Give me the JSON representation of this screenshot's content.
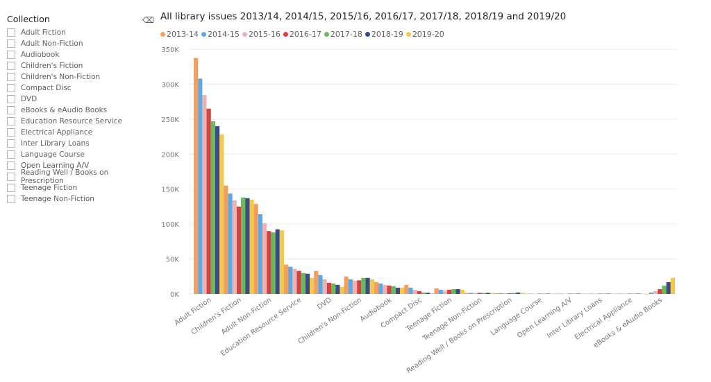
{
  "slicer": {
    "title": "Collection",
    "clear_icon": "eraser-icon",
    "items": [
      "Adult Fiction",
      "Adult Non-Fiction",
      "Audiobook",
      "Children's Fiction",
      "Children's Non-Fiction",
      "Compact Disc",
      "DVD",
      "eBooks & eAudio Books",
      "Education Resource Service",
      "Electrical Appliance",
      "Inter Library Loans",
      "Language Course",
      "Open Learning A/V",
      "Reading Well / Books on Prescription",
      "Teenage Fiction",
      "Teenage Non-Fiction"
    ]
  },
  "chart_data": {
    "type": "bar",
    "title": "All library issues 2013/14, 2014/15, 2015/16, 2016/17, 2017/18, 2018/19 and 2019/20",
    "xlabel": "",
    "ylabel": "",
    "ylim": [
      0,
      350000
    ],
    "yticks": [
      "0K",
      "50K",
      "100K",
      "150K",
      "200K",
      "250K",
      "300K",
      "350K"
    ],
    "grid": true,
    "legend": "top-left",
    "categories": [
      "Adult Fiction",
      "Children's Fiction",
      "Adult Non-Fiction",
      "Education Resource Service",
      "DVD",
      "Children's Non-Fiction",
      "Audiobook",
      "Compact Disc",
      "Teenage Fiction",
      "Teenage Non-Fiction",
      "Reading Well / Books on Prescription",
      "Language Course",
      "Open Learning A/V",
      "Inter Library Loans",
      "Electrical Appliance",
      "eBooks & eAudio Books"
    ],
    "series": [
      {
        "name": "2013-14",
        "color": "#F2A060",
        "values": [
          337600,
          155000,
          128700,
          42000,
          33000,
          25000,
          17000,
          13000,
          8000,
          1500,
          1000,
          500,
          500,
          500,
          500,
          0
        ]
      },
      {
        "name": "2014-15",
        "color": "#5DA9E5",
        "values": [
          308000,
          143600,
          114000,
          39000,
          27000,
          21000,
          15000,
          9000,
          6000,
          1500,
          1000,
          500,
          500,
          500,
          500,
          2000
        ]
      },
      {
        "name": "2015-16",
        "color": "#EDB3B3",
        "values": [
          284500,
          133700,
          101000,
          36000,
          21000,
          19000,
          13000,
          6000,
          5000,
          1500,
          1000,
          500,
          500,
          500,
          500,
          4000
        ]
      },
      {
        "name": "2016-17",
        "color": "#D24444",
        "values": [
          265000,
          125000,
          90000,
          33000,
          16000,
          19500,
          12000,
          4000,
          6000,
          1500,
          1000,
          500,
          500,
          500,
          500,
          7000
        ]
      },
      {
        "name": "2017-18",
        "color": "#6AB95A",
        "values": [
          247000,
          138000,
          88000,
          30000,
          15000,
          23000,
          11000,
          2000,
          7000,
          1500,
          1500,
          500,
          500,
          500,
          500,
          12000
        ]
      },
      {
        "name": "2018-19",
        "color": "#3C4A86",
        "values": [
          240000,
          137000,
          92400,
          29000,
          13000,
          23000,
          9000,
          1700,
          7000,
          1500,
          2000,
          500,
          500,
          500,
          500,
          17000
        ]
      },
      {
        "name": "2019-20",
        "color": "#F2C94C",
        "values": [
          228000,
          135000,
          91000,
          23000,
          10000,
          21000,
          9000,
          1000,
          6000,
          1500,
          1500,
          500,
          500,
          500,
          500,
          23000
        ]
      }
    ]
  }
}
